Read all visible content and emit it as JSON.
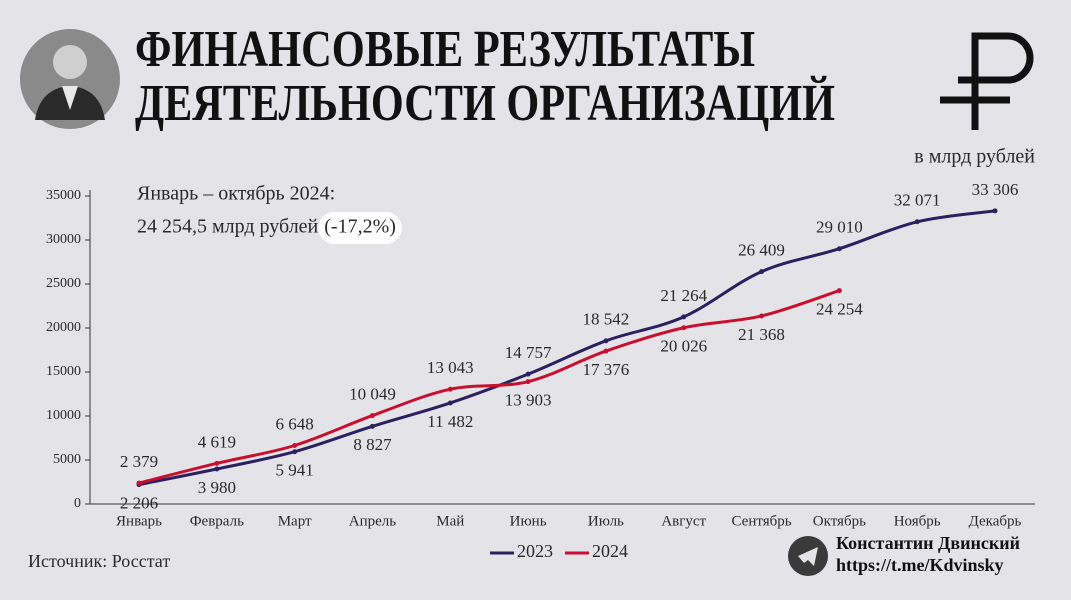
{
  "chart_data": {
    "type": "line",
    "title_lines": [
      "ФИНАНСОВЫЕ РЕЗУЛЬТАТЫ",
      "ДЕЯТЕЛЬНОСТИ ОРГАНИЗАЦИЙ"
    ],
    "unit": "в млрд рублей",
    "annotation": {
      "line1": "Январь – октябрь 2024:",
      "line2": "24 254,5 млрд рублей",
      "highlight": "(-17,2%)"
    },
    "categories": [
      "Январь",
      "Февраль",
      "Март",
      "Апрель",
      "Май",
      "Июнь",
      "Июль",
      "Август",
      "Сентябрь",
      "Октябрь",
      "Ноябрь",
      "Декабрь"
    ],
    "series": [
      {
        "name": "2023",
        "color": "#2b2060",
        "values": [
          2206,
          3980,
          5941,
          8827,
          11482,
          14757,
          18542,
          21264,
          26409,
          29010,
          32071,
          33306
        ],
        "value_labels": [
          "2 206",
          "3 980",
          "5 941",
          "8 827",
          "11 482",
          "14 757",
          "18 542",
          "21 264",
          "26 409",
          "29 010",
          "32 071",
          "33 306"
        ]
      },
      {
        "name": "2024",
        "color": "#c8102e",
        "values": [
          2379,
          4619,
          6648,
          10049,
          13043,
          13903,
          17376,
          20026,
          21368,
          24254,
          null,
          null
        ],
        "value_labels": [
          "2 379",
          "4 619",
          "6 648",
          "10 049",
          "13 043",
          "13 903",
          "17 376",
          "20 026",
          "21 368",
          "24 254",
          null,
          null
        ]
      }
    ],
    "ylim": [
      0,
      35000
    ],
    "yticks": [
      0,
      5000,
      10000,
      15000,
      20000,
      25000,
      30000,
      35000
    ],
    "source": "Источник: Росстат",
    "author": {
      "name": "Константин Двинский",
      "link": "https://t.me/Kdvinsky"
    }
  }
}
